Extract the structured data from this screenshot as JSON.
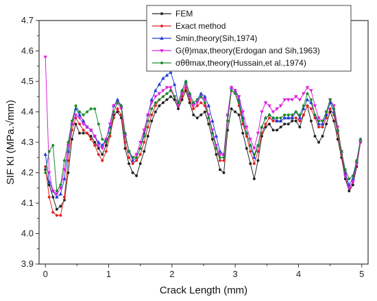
{
  "chart_data": {
    "type": "line",
    "title": "",
    "xlabel": "Crack Length (mm)",
    "ylabel": "SIF KI (MPa.√mm)",
    "xlim": [
      -0.1,
      5.1
    ],
    "ylim": [
      3.9,
      4.7
    ],
    "xticks": [
      "0",
      "1",
      "2",
      "3",
      "4",
      "5"
    ],
    "yticks": [
      "3.9",
      "4.0",
      "4.1",
      "4.2",
      "4.3",
      "4.4",
      "4.5",
      "4.6",
      "4.7"
    ],
    "grid": false,
    "legend_position": "top-right",
    "x": [
      0,
      0.06,
      0.12,
      0.18,
      0.24,
      0.3,
      0.36,
      0.42,
      0.48,
      0.54,
      0.6,
      0.66,
      0.72,
      0.78,
      0.84,
      0.9,
      0.96,
      1.02,
      1.08,
      1.14,
      1.2,
      1.26,
      1.32,
      1.38,
      1.44,
      1.5,
      1.56,
      1.62,
      1.68,
      1.74,
      1.8,
      1.86,
      1.92,
      1.98,
      2.04,
      2.1,
      2.16,
      2.22,
      2.28,
      2.34,
      2.4,
      2.46,
      2.52,
      2.58,
      2.64,
      2.7,
      2.76,
      2.82,
      2.88,
      2.94,
      3.0,
      3.06,
      3.12,
      3.18,
      3.24,
      3.3,
      3.36,
      3.42,
      3.48,
      3.54,
      3.6,
      3.66,
      3.72,
      3.78,
      3.84,
      3.9,
      3.96,
      4.02,
      4.08,
      4.14,
      4.2,
      4.26,
      4.32,
      4.38,
      4.44,
      4.5,
      4.56,
      4.62,
      4.68,
      4.74,
      4.8,
      4.86,
      4.92,
      4.98
    ],
    "series": [
      {
        "name": "FEM",
        "color": "#222222",
        "marker": "circle",
        "values": [
          4.21,
          4.16,
          4.12,
          4.08,
          4.09,
          4.11,
          4.2,
          4.31,
          4.36,
          4.33,
          4.33,
          4.33,
          4.32,
          4.3,
          4.28,
          4.26,
          4.29,
          4.33,
          4.39,
          4.4,
          4.38,
          4.28,
          4.23,
          4.2,
          4.19,
          4.23,
          4.27,
          4.32,
          4.37,
          4.4,
          4.42,
          4.43,
          4.44,
          4.45,
          4.44,
          4.41,
          4.44,
          4.47,
          4.43,
          4.39,
          4.38,
          4.39,
          4.4,
          4.36,
          4.31,
          4.26,
          4.21,
          4.2,
          4.34,
          4.41,
          4.4,
          4.39,
          4.33,
          4.28,
          4.23,
          4.18,
          4.24,
          4.32,
          4.35,
          4.36,
          4.34,
          4.34,
          4.35,
          4.36,
          4.36,
          4.37,
          4.37,
          4.35,
          4.39,
          4.42,
          4.37,
          4.32,
          4.3,
          4.32,
          4.36,
          4.4,
          4.37,
          4.31,
          4.25,
          4.18,
          4.14,
          4.16,
          4.22,
          4.3
        ]
      },
      {
        "name": "Exact   method",
        "color": "#e02020",
        "marker": "circle",
        "values": [
          4.22,
          4.12,
          4.07,
          4.06,
          4.06,
          4.12,
          4.24,
          4.34,
          4.38,
          4.36,
          4.34,
          4.33,
          4.31,
          4.29,
          4.26,
          4.24,
          4.27,
          4.32,
          4.38,
          4.41,
          4.39,
          4.3,
          4.25,
          4.23,
          4.24,
          4.26,
          4.3,
          4.35,
          4.39,
          4.42,
          4.44,
          4.45,
          4.46,
          4.47,
          4.45,
          4.42,
          4.45,
          4.48,
          4.44,
          4.41,
          4.42,
          4.43,
          4.42,
          4.38,
          4.33,
          4.28,
          4.24,
          4.24,
          4.37,
          4.47,
          4.46,
          4.42,
          4.36,
          4.32,
          4.27,
          4.23,
          4.27,
          4.33,
          4.36,
          4.38,
          4.37,
          4.37,
          4.37,
          4.38,
          4.38,
          4.38,
          4.38,
          4.37,
          4.39,
          4.42,
          4.41,
          4.38,
          4.35,
          4.35,
          4.38,
          4.41,
          4.39,
          4.33,
          4.26,
          4.19,
          4.15,
          4.17,
          4.23,
          4.3
        ]
      },
      {
        "name": "Smin,theory(Sih,1974)",
        "color": "#1f3fd6",
        "marker": "triangle",
        "values": [
          4.26,
          4.17,
          4.14,
          4.12,
          4.13,
          4.18,
          4.27,
          4.36,
          4.41,
          4.39,
          4.37,
          4.35,
          4.34,
          4.32,
          4.3,
          4.29,
          4.31,
          4.35,
          4.42,
          4.44,
          4.42,
          4.33,
          4.27,
          4.24,
          4.25,
          4.28,
          4.33,
          4.39,
          4.44,
          4.47,
          4.49,
          4.51,
          4.52,
          4.53,
          4.49,
          4.43,
          4.47,
          4.5,
          4.46,
          4.43,
          4.44,
          4.46,
          4.45,
          4.42,
          4.37,
          4.32,
          4.27,
          4.26,
          4.39,
          4.48,
          4.47,
          4.44,
          4.38,
          4.33,
          4.29,
          4.25,
          4.29,
          4.35,
          4.38,
          4.39,
          4.38,
          4.37,
          4.37,
          4.38,
          4.38,
          4.38,
          4.4,
          4.38,
          4.41,
          4.44,
          4.43,
          4.39,
          4.36,
          4.36,
          4.39,
          4.43,
          4.4,
          4.34,
          4.27,
          4.2,
          4.16,
          4.18,
          4.24,
          4.31
        ]
      },
      {
        "name": "G(θ)max,theory(Erdogan and Sih,1963)",
        "color": "#e020e0",
        "marker": "triangle-down",
        "values": [
          4.58,
          4.2,
          4.14,
          4.13,
          4.15,
          4.21,
          4.29,
          4.36,
          4.39,
          4.38,
          4.36,
          4.35,
          4.34,
          4.32,
          4.29,
          4.28,
          4.31,
          4.36,
          4.42,
          4.43,
          4.41,
          4.32,
          4.27,
          4.25,
          4.26,
          4.3,
          4.34,
          4.39,
          4.43,
          4.45,
          4.46,
          4.47,
          4.48,
          4.48,
          4.45,
          4.42,
          4.46,
          4.49,
          4.45,
          4.42,
          4.43,
          4.45,
          4.44,
          4.39,
          4.34,
          4.29,
          4.26,
          4.26,
          4.39,
          4.48,
          4.47,
          4.45,
          4.4,
          4.35,
          4.31,
          4.28,
          4.33,
          4.4,
          4.43,
          4.42,
          4.4,
          4.41,
          4.42,
          4.44,
          4.44,
          4.44,
          4.45,
          4.44,
          4.46,
          4.48,
          4.47,
          4.42,
          4.38,
          4.37,
          4.4,
          4.44,
          4.42,
          4.35,
          4.27,
          4.19,
          4.15,
          4.17,
          4.23,
          4.3
        ]
      },
      {
        "name": "σθθmax,theory(Hussain,et al.,1974)",
        "color": "#1a8a2a",
        "marker": "circle",
        "values": [
          4.2,
          4.27,
          4.29,
          4.14,
          4.16,
          4.24,
          4.3,
          4.37,
          4.42,
          4.4,
          4.39,
          4.4,
          4.41,
          4.41,
          4.36,
          4.31,
          4.3,
          4.33,
          4.4,
          4.43,
          4.42,
          4.33,
          4.27,
          4.25,
          4.25,
          4.28,
          4.32,
          4.37,
          4.41,
          4.43,
          4.44,
          4.45,
          4.46,
          4.47,
          4.45,
          4.43,
          4.47,
          4.5,
          4.46,
          4.43,
          4.44,
          4.45,
          4.43,
          4.38,
          4.33,
          4.28,
          4.25,
          4.25,
          4.37,
          4.47,
          4.46,
          4.43,
          4.37,
          4.33,
          4.29,
          4.26,
          4.29,
          4.35,
          4.38,
          4.39,
          4.38,
          4.38,
          4.38,
          4.39,
          4.39,
          4.39,
          4.4,
          4.39,
          4.42,
          4.46,
          4.44,
          4.39,
          4.37,
          4.37,
          4.4,
          4.44,
          4.41,
          4.34,
          4.27,
          4.21,
          4.18,
          4.19,
          4.24,
          4.31
        ]
      }
    ]
  }
}
